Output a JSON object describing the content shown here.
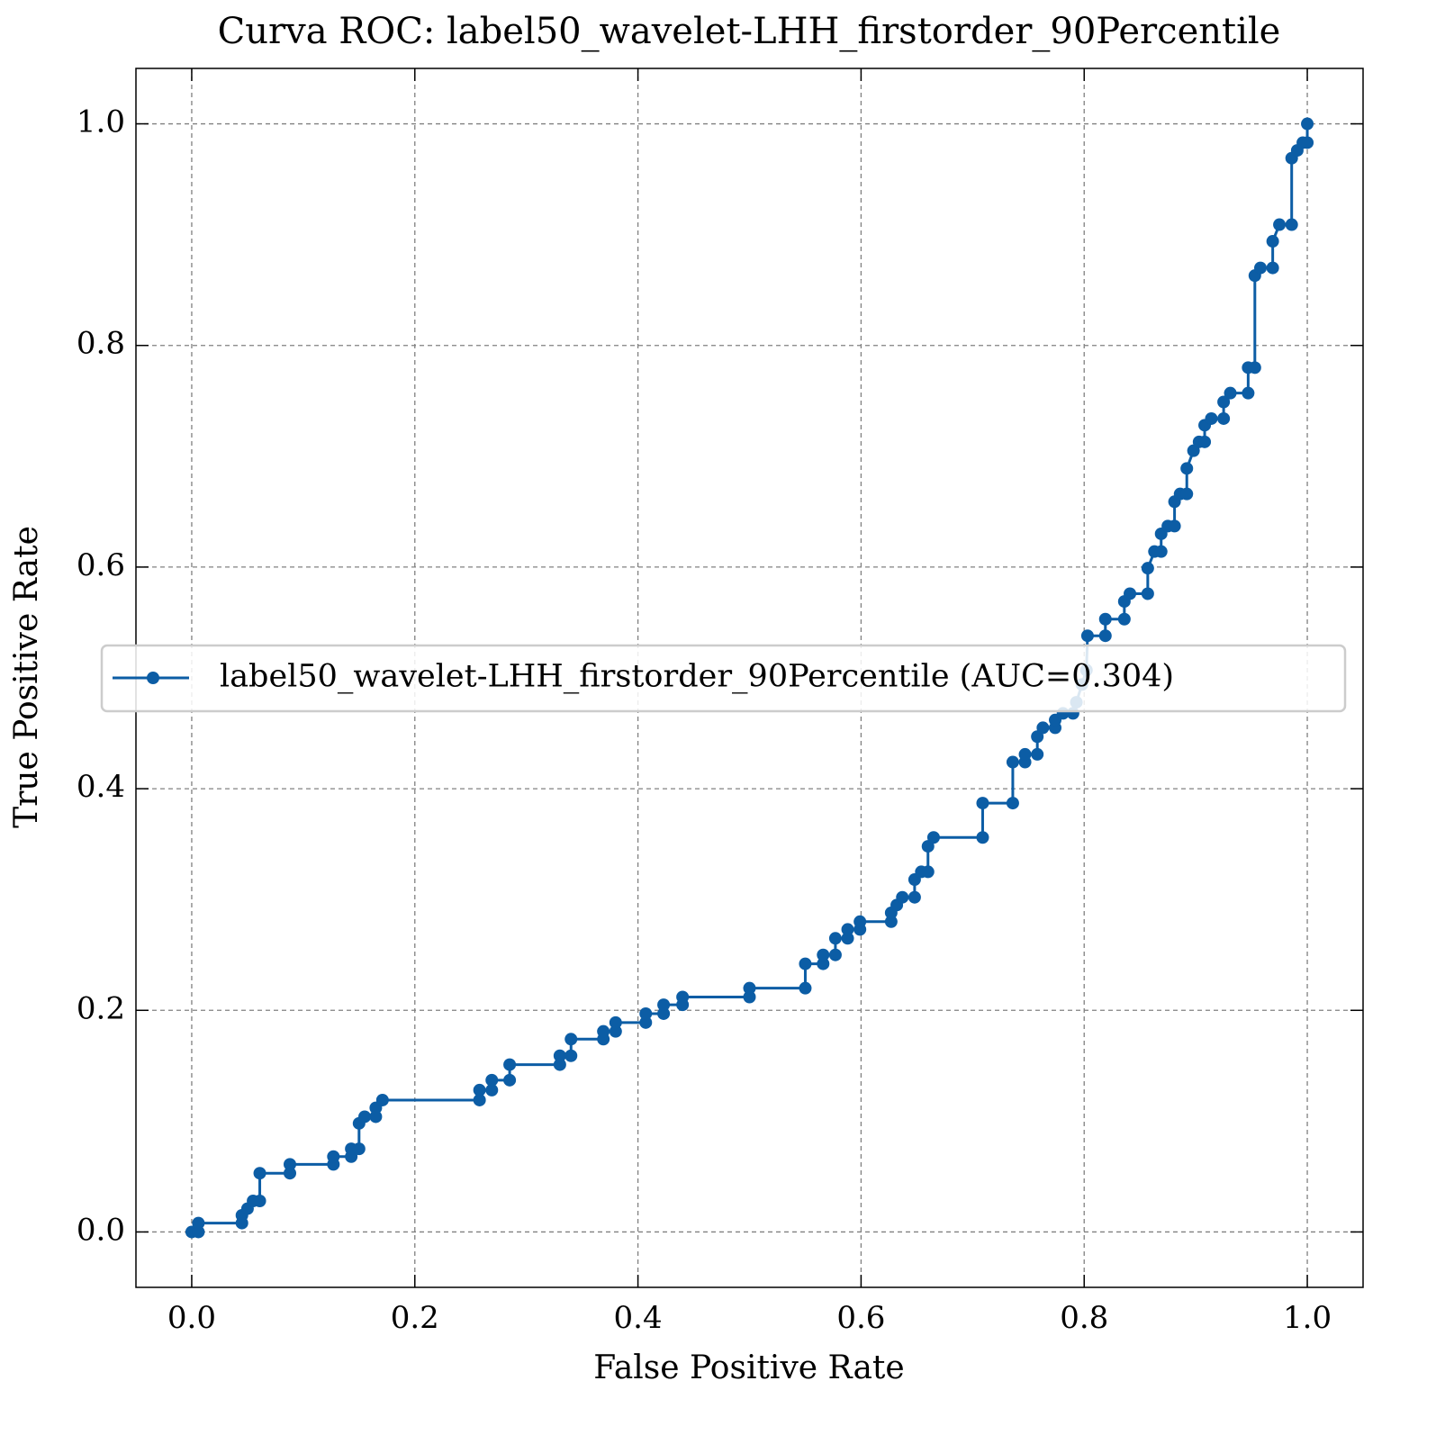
{
  "chart_data": {
    "type": "line",
    "title": "Curva ROC: label50_wavelet-LHH_firstorder_90Percentile",
    "x_label": "False Positive Rate",
    "y_label": "True Positive Rate",
    "xlim": [
      -0.05,
      1.05
    ],
    "ylim": [
      -0.05,
      1.05
    ],
    "xticks": [
      {
        "value": 0,
        "label": "0.0"
      },
      0.2,
      0.4,
      0.6,
      0.8,
      {
        "value": 1,
        "label": "1.0"
      }
    ],
    "yticks": [
      {
        "value": 0,
        "label": "0.0"
      },
      0.2,
      0.4,
      0.6,
      0.8,
      {
        "value": 1,
        "label": "1.0"
      }
    ],
    "grid": true,
    "legend": "center left",
    "x": [
      0,
      0.006,
      0.006,
      0.045,
      0.045,
      0.05,
      0.055,
      0.061,
      0.061,
      0.088,
      0.088,
      0.127,
      0.127,
      0.143,
      0.143,
      0.15,
      0.15,
      0.155,
      0.165,
      0.165,
      0.171,
      0.258,
      0.258,
      0.269,
      0.269,
      0.285,
      0.285,
      0.33,
      0.33,
      0.34,
      0.34,
      0.369,
      0.369,
      0.38,
      0.38,
      0.407,
      0.407,
      0.423,
      0.423,
      0.44,
      0.44,
      0.5,
      0.5,
      0.55,
      0.55,
      0.566,
      0.566,
      0.577,
      0.577,
      0.588,
      0.588,
      0.599,
      0.599,
      0.627,
      0.627,
      0.632,
      0.637,
      0.648,
      0.648,
      0.654,
      0.66,
      0.66,
      0.665,
      0.709,
      0.709,
      0.736,
      0.736,
      0.747,
      0.747,
      0.758,
      0.758,
      0.763,
      0.774,
      0.774,
      0.781,
      0.79,
      0.793,
      0.798,
      0.802,
      0.803,
      0.819,
      0.819,
      0.836,
      0.836,
      0.841,
      0.857,
      0.857,
      0.863,
      0.869,
      0.869,
      0.875,
      0.881,
      0.881,
      0.886,
      0.892,
      0.892,
      0.898,
      0.903,
      0.908,
      0.908,
      0.914,
      0.925,
      0.925,
      0.931,
      0.947,
      0.947,
      0.953,
      0.953,
      0.958,
      0.969,
      0.969,
      0.975,
      0.986,
      0.986,
      0.991,
      0.996,
      1,
      1
    ],
    "series": [
      {
        "name": "label50_wavelet-LHH_firstorder_90Percentile (AUC=0.304)",
        "color": "#0c5da5",
        "values": [
          0,
          0,
          0.008,
          0.008,
          0.015,
          0.021,
          0.028,
          0.028,
          0.053,
          0.053,
          0.061,
          0.061,
          0.068,
          0.068,
          0.075,
          0.075,
          0.098,
          0.104,
          0.104,
          0.112,
          0.119,
          0.119,
          0.128,
          0.128,
          0.137,
          0.137,
          0.151,
          0.151,
          0.159,
          0.159,
          0.174,
          0.174,
          0.181,
          0.181,
          0.189,
          0.189,
          0.197,
          0.197,
          0.205,
          0.205,
          0.212,
          0.212,
          0.22,
          0.22,
          0.242,
          0.242,
          0.25,
          0.25,
          0.265,
          0.265,
          0.273,
          0.273,
          0.28,
          0.28,
          0.288,
          0.295,
          0.302,
          0.302,
          0.318,
          0.325,
          0.325,
          0.348,
          0.356,
          0.356,
          0.387,
          0.387,
          0.424,
          0.424,
          0.431,
          0.431,
          0.447,
          0.455,
          0.455,
          0.462,
          0.468,
          0.468,
          0.478,
          0.494,
          0.507,
          0.538,
          0.538,
          0.553,
          0.553,
          0.569,
          0.576,
          0.576,
          0.599,
          0.614,
          0.614,
          0.63,
          0.637,
          0.637,
          0.659,
          0.666,
          0.666,
          0.689,
          0.705,
          0.713,
          0.713,
          0.728,
          0.734,
          0.734,
          0.749,
          0.757,
          0.757,
          0.78,
          0.78,
          0.863,
          0.87,
          0.87,
          0.894,
          0.909,
          0.909,
          0.969,
          0.976,
          0.983,
          0.983,
          1
        ]
      }
    ]
  }
}
